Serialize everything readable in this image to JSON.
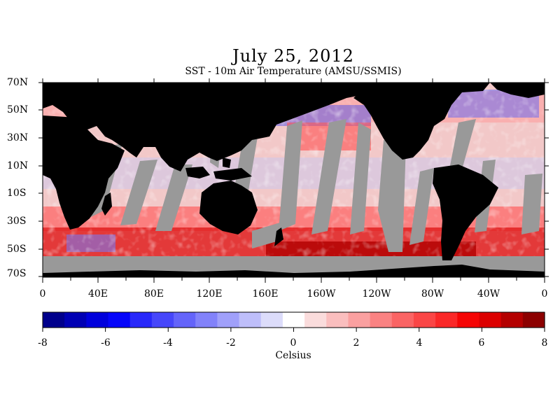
{
  "title": "July 25, 2012",
  "subtitle": "SST - 10m Air Temperature (AMSU/SSMIS)",
  "map": {
    "lat_labels": [
      "70N",
      "50N",
      "30N",
      "10N",
      "10S",
      "30S",
      "50S",
      "70S"
    ],
    "lon_labels": [
      "0",
      "40E",
      "80E",
      "120E",
      "160E",
      "160W",
      "120W",
      "80W",
      "40W",
      "0"
    ],
    "colors": {
      "land": "#000000",
      "no_data": "#999999",
      "ocean_base": "#f2c8c8"
    }
  },
  "colorbar": {
    "title": "Celsius",
    "min": -8,
    "max": 8,
    "tick_labels": [
      "-8",
      "-6",
      "-4",
      "-2",
      "0",
      "2",
      "4",
      "6",
      "8"
    ],
    "colors": [
      "#00008c",
      "#0000b4",
      "#0000dc",
      "#0505fa",
      "#2828fa",
      "#4646fa",
      "#6464fa",
      "#8282fa",
      "#a0a0fa",
      "#bebefa",
      "#dcdcfa",
      "#ffffff",
      "#fadcdc",
      "#fabebe",
      "#faa0a0",
      "#fa8282",
      "#fa6464",
      "#fa4646",
      "#fa2828",
      "#f50505",
      "#dc0000",
      "#b40000",
      "#8c0000"
    ]
  }
}
